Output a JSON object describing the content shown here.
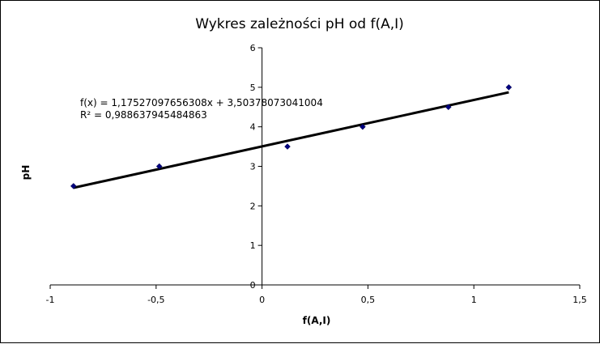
{
  "chart_data": {
    "type": "scatter",
    "title": "Wykres zależności pH od f(A,I)",
    "xlabel": "f(A,I)",
    "ylabel": "pH",
    "xlim": [
      -1,
      1.5
    ],
    "ylim": [
      0,
      6
    ],
    "x_ticks": [
      "-1",
      "-0,5",
      "0",
      "0,5",
      "1",
      "1,5"
    ],
    "x_tick_values": [
      -1,
      -0.5,
      0,
      0.5,
      1,
      1.5
    ],
    "y_ticks": [
      "0",
      "1",
      "2",
      "3",
      "4",
      "5",
      "6"
    ],
    "y_tick_values": [
      0,
      1,
      2,
      3,
      4,
      5,
      6
    ],
    "grid": false,
    "series": [
      {
        "x": [
          -0.89,
          -0.485,
          0.12,
          0.475,
          0.88,
          1.165
        ],
        "y": [
          2.5,
          3.0,
          3.5,
          4.0,
          4.5,
          5.0
        ],
        "marker_color": "#000080"
      }
    ],
    "trendline": {
      "slope": 1.17527097656308,
      "intercept": 3.50378073041004,
      "x_range": [
        -0.89,
        1.165
      ],
      "color": "#000000",
      "equation_text": "f(x) = 1,17527097656308x + 3,50378073041004",
      "r2_text": "R² = 0,988637945484863"
    }
  }
}
